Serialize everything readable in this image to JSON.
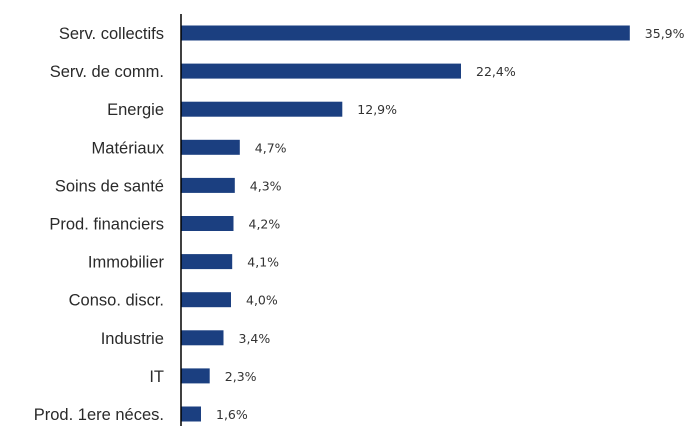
{
  "colors": {
    "bar": "#1b3f80",
    "axis": "#000000"
  },
  "chart_data": {
    "type": "bar",
    "orientation": "horizontal",
    "title": "",
    "xlabel": "",
    "ylabel": "",
    "xlim": [
      0,
      40
    ],
    "grid": false,
    "categories": [
      "Serv. collectifs",
      "Serv. de comm.",
      "Energie",
      "Matériaux",
      "Soins de santé",
      "Prod. financiers",
      "Immobilier",
      "Conso. discr.",
      "Industrie",
      "IT",
      "Prod. 1ere néces."
    ],
    "values": [
      35.9,
      22.4,
      12.9,
      4.7,
      4.3,
      4.2,
      4.1,
      4.0,
      3.4,
      2.3,
      1.6
    ],
    "value_labels": [
      "35,9%",
      "22,4%",
      "12,9%",
      "4,7%",
      "4,3%",
      "4,2%",
      "4,1%",
      "4,0%",
      "3,4%",
      "2,3%",
      "1,6%"
    ]
  }
}
